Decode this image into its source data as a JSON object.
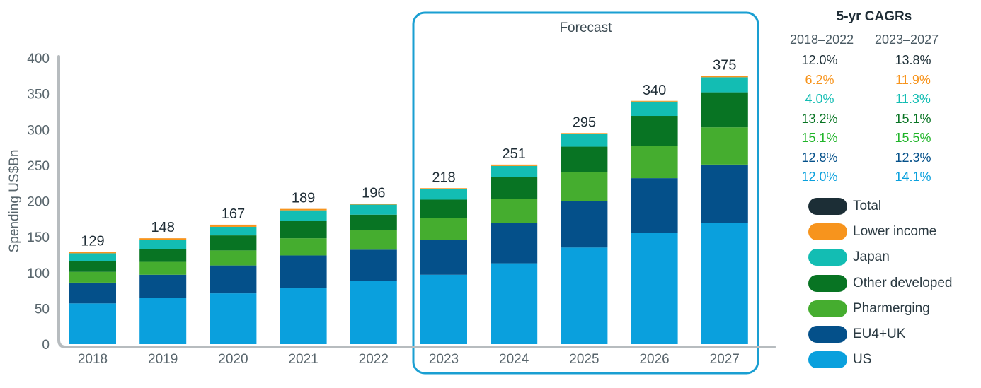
{
  "chart_data": {
    "type": "bar",
    "stacked": true,
    "ylabel": "Spending US$Bn",
    "ylim": [
      0,
      400
    ],
    "yticks": [
      0,
      50,
      100,
      150,
      200,
      250,
      300,
      350,
      400
    ],
    "categories": [
      "2018",
      "2019",
      "2020",
      "2021",
      "2022",
      "2023",
      "2024",
      "2025",
      "2026",
      "2027"
    ],
    "totals": [
      129,
      148,
      167,
      189,
      196,
      218,
      251,
      295,
      340,
      375
    ],
    "total_labels": [
      "129",
      "148",
      "167",
      "189",
      "196",
      "218",
      "251",
      "295",
      "340",
      "375"
    ],
    "series": [
      {
        "name": "US",
        "color": "#0aa0dd",
        "values": [
          57,
          65,
          71,
          78,
          88,
          97,
          113,
          135,
          156,
          169
        ]
      },
      {
        "name": "EU4+UK",
        "color": "#04508a",
        "values": [
          29,
          32,
          39,
          46,
          44,
          49,
          56,
          65,
          76,
          82
        ]
      },
      {
        "name": "Pharmerging",
        "color": "#45ad2f",
        "values": [
          15,
          18,
          21,
          24,
          27,
          30,
          34,
          40,
          45,
          52
        ]
      },
      {
        "name": "Other developed",
        "color": "#087423",
        "values": [
          15,
          18,
          21,
          24,
          22,
          26,
          31,
          36,
          42,
          49
        ]
      },
      {
        "name": "Japan",
        "color": "#13bdb3",
        "values": [
          11,
          13,
          12,
          15,
          14,
          15,
          15,
          18,
          20,
          21
        ]
      },
      {
        "name": "Lower income",
        "color": "#f7941d",
        "values": [
          2,
          2,
          3,
          2,
          1,
          1,
          2,
          1,
          1,
          2
        ]
      }
    ],
    "forecast": {
      "label": "Forecast",
      "from": "2023",
      "to": "2027"
    }
  },
  "legend": {
    "title": "5-yr CAGRs",
    "period1": "2018–2022",
    "period2": "2023–2027",
    "rows": [
      {
        "name": "Total",
        "color": "#1c2e36",
        "text_color": "#1c2e36",
        "cagr1": "12.0%",
        "cagr2": "13.8%"
      },
      {
        "name": "Lower income",
        "color": "#f7941d",
        "text_color": "#f7941d",
        "cagr1": "6.2%",
        "cagr2": "11.9%"
      },
      {
        "name": "Japan",
        "color": "#13bdb3",
        "text_color": "#13bdb3",
        "cagr1": "4.0%",
        "cagr2": "11.3%"
      },
      {
        "name": "Other developed",
        "color": "#087423",
        "text_color": "#087423",
        "cagr1": "13.2%",
        "cagr2": "15.1%"
      },
      {
        "name": "Pharmerging",
        "color": "#45ad2f",
        "text_color": "#21b52a",
        "cagr1": "15.1%",
        "cagr2": "15.5%"
      },
      {
        "name": "EU4+UK",
        "color": "#04508a",
        "text_color": "#04508a",
        "cagr1": "12.8%",
        "cagr2": "12.3%"
      },
      {
        "name": "US",
        "color": "#0aa0dd",
        "text_color": "#0aa0dd",
        "cagr1": "12.0%",
        "cagr2": "14.1%"
      }
    ]
  },
  "colors": {
    "axis": "#b7bcbf",
    "tick_text": "#58656c",
    "label_text": "#1f2d36",
    "forecast_border": "#1a9fd2"
  }
}
